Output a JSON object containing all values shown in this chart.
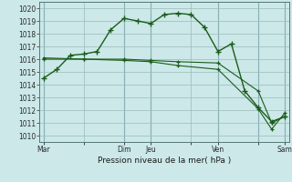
{
  "xlabel": "Pression niveau de la mer( hPa )",
  "bg_color": "#cce8e8",
  "grid_color": "#99bbbb",
  "line_color": "#1a5c1a",
  "vline_color": "#6699aa",
  "ylim": [
    1009.5,
    1020.5
  ],
  "xlim": [
    -0.3,
    18.3
  ],
  "yticks": [
    1010,
    1011,
    1012,
    1013,
    1014,
    1015,
    1016,
    1017,
    1018,
    1019,
    1020
  ],
  "xtick_labels": [
    "Mar",
    "",
    "Dim",
    "Jeu",
    "",
    "Ven",
    "",
    "Sam"
  ],
  "xtick_positions": [
    0,
    3,
    6,
    8,
    11,
    13,
    16,
    18
  ],
  "vline_positions": [
    0,
    6,
    8,
    13,
    16,
    18
  ],
  "series1_x": [
    0,
    1,
    2,
    3,
    4,
    5,
    6,
    7,
    8,
    9,
    10,
    11,
    12,
    13,
    14,
    15,
    16,
    17,
    18
  ],
  "series1_y": [
    1014.5,
    1015.2,
    1016.3,
    1016.4,
    1016.6,
    1018.3,
    1019.2,
    1019.0,
    1018.8,
    1019.5,
    1019.6,
    1019.5,
    1018.5,
    1016.6,
    1017.2,
    1013.5,
    1012.2,
    1011.1,
    1011.5
  ],
  "series2_x": [
    0,
    3,
    6,
    8,
    10,
    13,
    16,
    17,
    18
  ],
  "series2_y": [
    1016.1,
    1016.0,
    1015.9,
    1015.8,
    1015.5,
    1015.2,
    1012.1,
    1010.5,
    1011.8
  ],
  "series3_x": [
    0,
    3,
    6,
    8,
    10,
    13,
    16,
    17,
    18
  ],
  "series3_y": [
    1016.0,
    1016.0,
    1016.0,
    1015.9,
    1015.8,
    1015.7,
    1013.5,
    1011.0,
    1011.5
  ],
  "xlabel_fontsize": 6.5,
  "tick_fontsize": 5.5
}
